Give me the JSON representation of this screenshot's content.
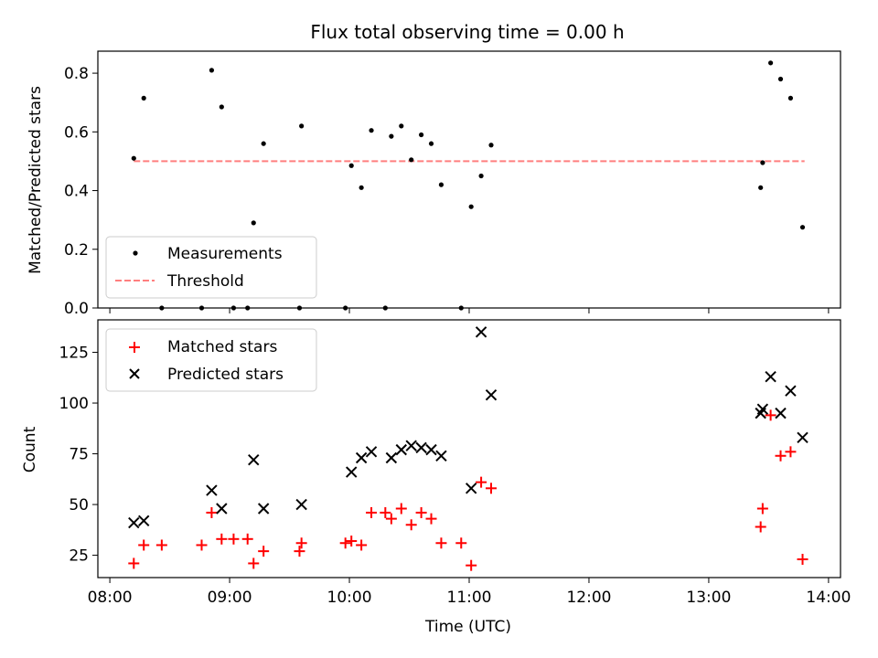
{
  "chart_data": [
    {
      "type": "scatter",
      "title": "Flux total observing time = 0.00 h",
      "xlabel": "",
      "ylabel": "Matched/Predicted stars",
      "ylim": [
        0,
        0.875
      ],
      "xlim": [
        "07:54",
        "14:06"
      ],
      "x_ticks": [
        "08:00",
        "09:00",
        "10:00",
        "11:00",
        "12:00",
        "13:00",
        "14:00"
      ],
      "y_ticks": [
        "0.0",
        "0.2",
        "0.4",
        "0.6",
        "0.8"
      ],
      "legend": {
        "placement": "lower-left",
        "entries": [
          "Measurements",
          "Threshold"
        ]
      },
      "threshold": {
        "name": "Threshold",
        "value": 0.5,
        "x_range": [
          "08:12",
          "13:48"
        ],
        "color": "#ff7f7f",
        "style": "dashed"
      },
      "series": [
        {
          "name": "Measurements",
          "color": "#000000",
          "marker": "dot",
          "points": [
            [
              "08:12",
              0.51
            ],
            [
              "08:17",
              0.715
            ],
            [
              "08:26",
              0.0
            ],
            [
              "08:46",
              0.0
            ],
            [
              "08:51",
              0.81
            ],
            [
              "08:56",
              0.685
            ],
            [
              "09:02",
              0.0
            ],
            [
              "09:09",
              0.0
            ],
            [
              "09:12",
              0.29
            ],
            [
              "09:17",
              0.56
            ],
            [
              "09:35",
              0.0
            ],
            [
              "09:36",
              0.62
            ],
            [
              "09:58",
              0.0
            ],
            [
              "10:01",
              0.485
            ],
            [
              "10:06",
              0.41
            ],
            [
              "10:11",
              0.605
            ],
            [
              "10:18",
              0.0
            ],
            [
              "10:21",
              0.585
            ],
            [
              "10:26",
              0.62
            ],
            [
              "10:31",
              0.505
            ],
            [
              "10:36",
              0.59
            ],
            [
              "10:41",
              0.56
            ],
            [
              "10:46",
              0.42
            ],
            [
              "10:56",
              0.0
            ],
            [
              "11:01",
              0.345
            ],
            [
              "11:06",
              0.45
            ],
            [
              "11:11",
              0.555
            ],
            [
              "13:26",
              0.41
            ],
            [
              "13:27",
              0.495
            ],
            [
              "13:31",
              0.835
            ],
            [
              "13:36",
              0.78
            ],
            [
              "13:41",
              0.715
            ],
            [
              "13:47",
              0.275
            ]
          ]
        }
      ]
    },
    {
      "type": "scatter",
      "title": "",
      "xlabel": "Time (UTC)",
      "ylabel": "Count",
      "ylim": [
        14,
        141
      ],
      "xlim": [
        "07:54",
        "14:06"
      ],
      "x_ticks": [
        "08:00",
        "09:00",
        "10:00",
        "11:00",
        "12:00",
        "13:00",
        "14:00"
      ],
      "y_ticks": [
        "25",
        "50",
        "75",
        "100",
        "125"
      ],
      "legend": {
        "placement": "upper-left",
        "entries": [
          "Matched stars",
          "Predicted stars"
        ]
      },
      "series": [
        {
          "name": "Matched stars",
          "color": "#ff0000",
          "marker": "plus",
          "points": [
            [
              "08:12",
              21
            ],
            [
              "08:17",
              30
            ],
            [
              "08:26",
              30
            ],
            [
              "08:46",
              30
            ],
            [
              "08:51",
              46
            ],
            [
              "08:56",
              33
            ],
            [
              "09:02",
              33
            ],
            [
              "09:09",
              33
            ],
            [
              "09:12",
              21
            ],
            [
              "09:17",
              27
            ],
            [
              "09:35",
              27
            ],
            [
              "09:36",
              31
            ],
            [
              "09:58",
              31
            ],
            [
              "10:01",
              32
            ],
            [
              "10:06",
              30
            ],
            [
              "10:11",
              46
            ],
            [
              "10:18",
              46
            ],
            [
              "10:21",
              43
            ],
            [
              "10:26",
              48
            ],
            [
              "10:31",
              40
            ],
            [
              "10:36",
              46
            ],
            [
              "10:41",
              43
            ],
            [
              "10:46",
              31
            ],
            [
              "10:56",
              31
            ],
            [
              "11:01",
              20
            ],
            [
              "11:06",
              61
            ],
            [
              "11:11",
              58
            ],
            [
              "13:26",
              39
            ],
            [
              "13:27",
              48
            ],
            [
              "13:31",
              94
            ],
            [
              "13:36",
              74
            ],
            [
              "13:41",
              76
            ],
            [
              "13:47",
              23
            ]
          ]
        },
        {
          "name": "Predicted stars",
          "color": "#000000",
          "marker": "x",
          "points": [
            [
              "08:12",
              41
            ],
            [
              "08:17",
              42
            ],
            [
              "08:51",
              57
            ],
            [
              "08:56",
              48
            ],
            [
              "09:12",
              72
            ],
            [
              "09:17",
              48
            ],
            [
              "09:36",
              50
            ],
            [
              "10:01",
              66
            ],
            [
              "10:06",
              73
            ],
            [
              "10:11",
              76
            ],
            [
              "10:21",
              73
            ],
            [
              "10:26",
              77
            ],
            [
              "10:31",
              79
            ],
            [
              "10:36",
              78
            ],
            [
              "10:41",
              77
            ],
            [
              "10:46",
              74
            ],
            [
              "11:01",
              58
            ],
            [
              "11:06",
              135
            ],
            [
              "11:11",
              104
            ],
            [
              "13:26",
              95
            ],
            [
              "13:27",
              97
            ],
            [
              "13:31",
              113
            ],
            [
              "13:36",
              95
            ],
            [
              "13:41",
              106
            ],
            [
              "13:47",
              83
            ]
          ]
        }
      ]
    }
  ]
}
